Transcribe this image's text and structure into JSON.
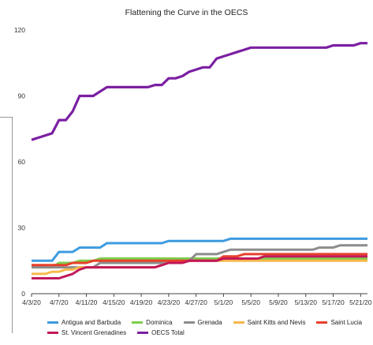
{
  "chart_data": {
    "type": "line",
    "title": "Flattening the Curve in the OECS",
    "xlabel": "",
    "ylabel": "",
    "x": [
      "4/3/20",
      "4/4/20",
      "4/5/20",
      "4/6/20",
      "4/7/20",
      "4/8/20",
      "4/9/20",
      "4/10/20",
      "4/11/20",
      "4/12/20",
      "4/13/20",
      "4/14/20",
      "4/15/20",
      "4/16/20",
      "4/17/20",
      "4/18/20",
      "4/19/20",
      "4/20/20",
      "4/21/20",
      "4/22/20",
      "4/23/20",
      "4/24/20",
      "4/25/20",
      "4/26/20",
      "4/27/20",
      "4/28/20",
      "4/29/20",
      "4/30/20",
      "5/1/20",
      "5/2/20",
      "5/3/20",
      "5/4/20",
      "5/5/20",
      "5/6/20",
      "5/7/20",
      "5/8/20",
      "5/9/20",
      "5/10/20",
      "5/11/20",
      "5/12/20",
      "5/13/20",
      "5/14/20",
      "5/15/20",
      "5/16/20",
      "5/17/20",
      "5/18/20",
      "5/19/20",
      "5/20/20",
      "5/21/20",
      "5/22/20"
    ],
    "x_tick_labels": [
      "4/3/20",
      "4/7/20",
      "4/11/20",
      "4/15/20",
      "4/19/20",
      "4/23/20",
      "4/27/20",
      "5/1/20",
      "5/5/20",
      "5/9/20",
      "5/13/20",
      "5/17/20",
      "5/21/20"
    ],
    "ylim": [
      0,
      120
    ],
    "y_ticks": [
      0,
      30,
      60,
      90,
      120
    ],
    "grid": false,
    "legend_position": "bottom",
    "series": [
      {
        "name": "Antigua and Barbuda",
        "color": "#3d9be0",
        "values": [
          15,
          15,
          15,
          15,
          19,
          19,
          19,
          21,
          21,
          21,
          21,
          23,
          23,
          23,
          23,
          23,
          23,
          23,
          23,
          23,
          24,
          24,
          24,
          24,
          24,
          24,
          24,
          24,
          24,
          25,
          25,
          25,
          25,
          25,
          25,
          25,
          25,
          25,
          25,
          25,
          25,
          25,
          25,
          25,
          25,
          25,
          25,
          25,
          25,
          25
        ]
      },
      {
        "name": "Dominica",
        "color": "#7ccd4c",
        "values": [
          12,
          12,
          12,
          12,
          14,
          14,
          14,
          15,
          15,
          15,
          16,
          16,
          16,
          16,
          16,
          16,
          16,
          16,
          16,
          16,
          16,
          16,
          16,
          16,
          16,
          16,
          16,
          16,
          16,
          16,
          16,
          16,
          16,
          16,
          16,
          16,
          16,
          16,
          16,
          16,
          16,
          16,
          16,
          16,
          16,
          16,
          16,
          16,
          16,
          16
        ]
      },
      {
        "name": "Grenada",
        "color": "#8c8c8c",
        "values": [
          12,
          12,
          12,
          12,
          12,
          12,
          12,
          12,
          12,
          12,
          14,
          14,
          14,
          14,
          14,
          14,
          14,
          14,
          14,
          14,
          14,
          15,
          15,
          15,
          18,
          18,
          18,
          18,
          19,
          20,
          20,
          20,
          20,
          20,
          20,
          20,
          20,
          20,
          20,
          20,
          20,
          20,
          21,
          21,
          21,
          22,
          22,
          22,
          22,
          22
        ]
      },
      {
        "name": "Saint Kitts and Nevis",
        "color": "#f7b84b",
        "values": [
          9,
          9,
          9,
          10,
          10,
          11,
          11,
          12,
          12,
          12,
          12,
          12,
          12,
          12,
          12,
          12,
          12,
          12,
          12,
          13,
          14,
          14,
          14,
          15,
          15,
          15,
          15,
          15,
          15,
          15,
          15,
          15,
          15,
          15,
          15,
          15,
          15,
          15,
          15,
          15,
          15,
          15,
          15,
          15,
          15,
          15,
          15,
          15,
          15,
          15
        ]
      },
      {
        "name": "Saint Lucia",
        "color": "#e8402b",
        "values": [
          13,
          13,
          13,
          13,
          13,
          13,
          14,
          14,
          14,
          15,
          15,
          15,
          15,
          15,
          15,
          15,
          15,
          15,
          15,
          15,
          15,
          15,
          15,
          15,
          15,
          15,
          15,
          15,
          17,
          17,
          17,
          18,
          18,
          18,
          18,
          18,
          18,
          18,
          18,
          18,
          18,
          18,
          18,
          18,
          18,
          18,
          18,
          18,
          18,
          18
        ]
      },
      {
        "name": "St. Vincent Grenadines",
        "color": "#c2185b",
        "values": [
          7,
          7,
          7,
          7,
          7,
          8,
          9,
          11,
          12,
          12,
          12,
          12,
          12,
          12,
          12,
          12,
          12,
          12,
          12,
          13,
          14,
          14,
          14,
          15,
          15,
          15,
          15,
          15,
          16,
          16,
          16,
          16,
          16,
          16,
          17,
          17,
          17,
          17,
          17,
          17,
          17,
          17,
          17,
          17,
          17,
          17,
          17,
          17,
          17,
          17
        ]
      },
      {
        "name": "OECS Total",
        "color": "#7b1fa2",
        "values": [
          70,
          71,
          72,
          73,
          79,
          79,
          83,
          90,
          90,
          90,
          92,
          94,
          94,
          94,
          94,
          94,
          94,
          94,
          95,
          95,
          98,
          98,
          99,
          101,
          102,
          103,
          103,
          107,
          108,
          109,
          110,
          111,
          112,
          112,
          112,
          112,
          112,
          112,
          112,
          112,
          112,
          112,
          112,
          112,
          113,
          113,
          113,
          113,
          114,
          114
        ]
      }
    ]
  }
}
